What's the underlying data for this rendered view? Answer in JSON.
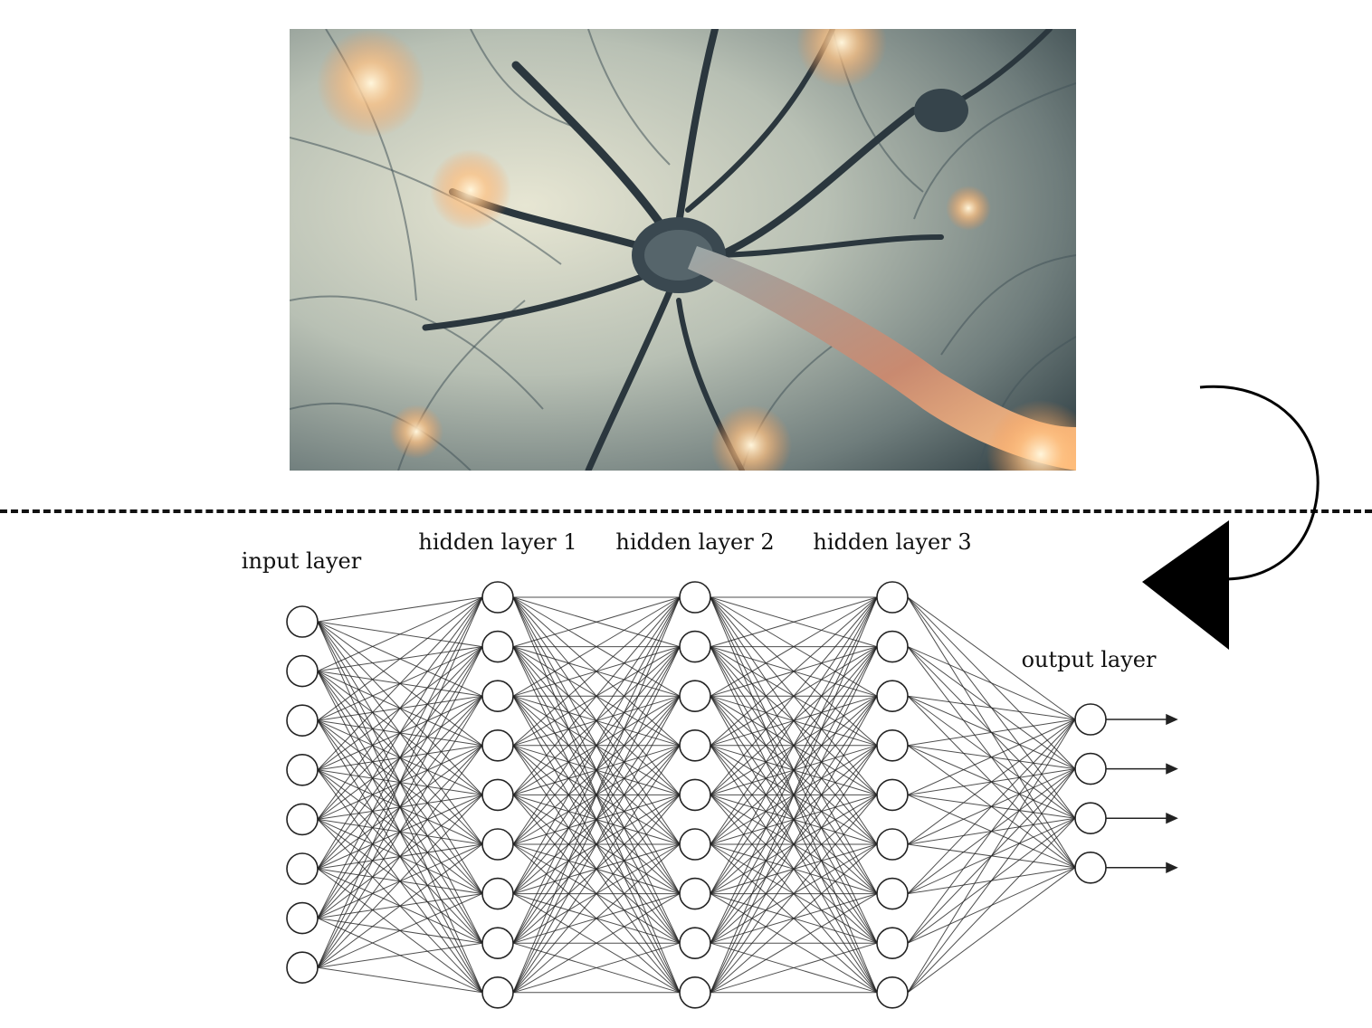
{
  "diagram": {
    "photo_subject": "neuron-illustration",
    "layers": [
      {
        "label": "input layer",
        "nodes": 8
      },
      {
        "label": "hidden layer 1",
        "nodes": 9
      },
      {
        "label": "hidden layer 2",
        "nodes": 9
      },
      {
        "label": "hidden layer 3",
        "nodes": 9
      },
      {
        "label": "output layer",
        "nodes": 4
      }
    ],
    "output_arrows": 4
  }
}
